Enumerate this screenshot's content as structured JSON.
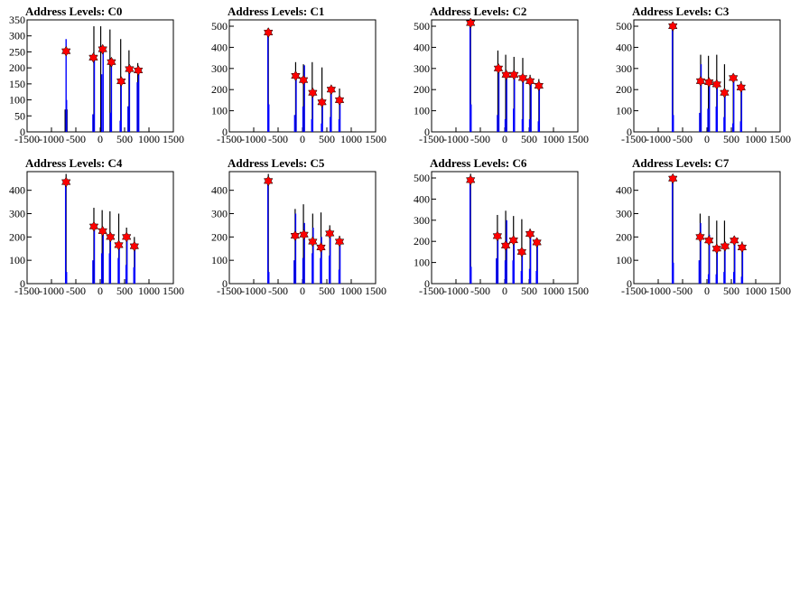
{
  "chart_data": [
    {
      "type": "bar",
      "title": "Address Levels: C0",
      "xlim": [
        -1500,
        1500
      ],
      "ylim": [
        0,
        350
      ],
      "xticks": [
        -1500,
        -1000,
        -500,
        0,
        500,
        1000,
        1500
      ],
      "yticks": [
        0,
        50,
        100,
        150,
        200,
        250,
        300,
        350
      ],
      "black_bars": [
        {
          "x": -720,
          "y": 70
        },
        {
          "x": -680,
          "y": 70
        },
        {
          "x": -130,
          "y": 330
        },
        {
          "x": 10,
          "y": 330
        },
        {
          "x": 200,
          "y": 320
        },
        {
          "x": 420,
          "y": 290
        },
        {
          "x": 590,
          "y": 255
        },
        {
          "x": 770,
          "y": 215
        }
      ],
      "blue_bars": [
        {
          "x": -700,
          "y": 290
        },
        {
          "x": -690,
          "y": 100
        },
        {
          "x": -150,
          "y": 55
        },
        {
          "x": -120,
          "y": 235
        },
        {
          "x": 30,
          "y": 180
        },
        {
          "x": 60,
          "y": 255
        },
        {
          "x": 210,
          "y": 60
        },
        {
          "x": 230,
          "y": 215
        },
        {
          "x": 410,
          "y": 35
        },
        {
          "x": 430,
          "y": 160
        },
        {
          "x": 570,
          "y": 80
        },
        {
          "x": 600,
          "y": 195
        },
        {
          "x": 760,
          "y": 155
        },
        {
          "x": 790,
          "y": 190
        }
      ],
      "peaks": [
        {
          "x": -700,
          "y": 252
        },
        {
          "x": -140,
          "y": 232
        },
        {
          "x": 50,
          "y": 258
        },
        {
          "x": 230,
          "y": 218
        },
        {
          "x": 430,
          "y": 158
        },
        {
          "x": 600,
          "y": 196
        },
        {
          "x": 780,
          "y": 192
        }
      ]
    },
    {
      "type": "bar",
      "title": "Address Levels: C1",
      "xlim": [
        -1500,
        1500
      ],
      "ylim": [
        0,
        530
      ],
      "xticks": [
        -1500,
        -1000,
        -500,
        0,
        500,
        1000,
        1500
      ],
      "yticks": [
        0,
        100,
        200,
        300,
        400,
        500
      ],
      "black_bars": [
        {
          "x": -700,
          "y": 490
        },
        {
          "x": -140,
          "y": 330
        },
        {
          "x": 20,
          "y": 320
        },
        {
          "x": 200,
          "y": 330
        },
        {
          "x": 400,
          "y": 305
        },
        {
          "x": 580,
          "y": 215
        },
        {
          "x": 760,
          "y": 205
        }
      ],
      "blue_bars": [
        {
          "x": -710,
          "y": 470
        },
        {
          "x": -690,
          "y": 130
        },
        {
          "x": -160,
          "y": 80
        },
        {
          "x": -130,
          "y": 260
        },
        {
          "x": 10,
          "y": 120
        },
        {
          "x": 40,
          "y": 315
        },
        {
          "x": 190,
          "y": 60
        },
        {
          "x": 210,
          "y": 180
        },
        {
          "x": 390,
          "y": 40
        },
        {
          "x": 410,
          "y": 140
        },
        {
          "x": 570,
          "y": 70
        },
        {
          "x": 590,
          "y": 200
        },
        {
          "x": 750,
          "y": 60
        },
        {
          "x": 770,
          "y": 150
        }
      ],
      "peaks": [
        {
          "x": -700,
          "y": 470
        },
        {
          "x": -140,
          "y": 265
        },
        {
          "x": 20,
          "y": 245
        },
        {
          "x": 210,
          "y": 185
        },
        {
          "x": 400,
          "y": 140
        },
        {
          "x": 590,
          "y": 200
        },
        {
          "x": 760,
          "y": 150
        }
      ]
    },
    {
      "type": "bar",
      "title": "Address Levels: C2",
      "xlim": [
        -1500,
        1500
      ],
      "ylim": [
        0,
        530
      ],
      "xticks": [
        -1500,
        -1000,
        -500,
        0,
        500,
        1000,
        1500
      ],
      "yticks": [
        0,
        100,
        200,
        300,
        400,
        500
      ],
      "black_bars": [
        {
          "x": -700,
          "y": 520
        },
        {
          "x": -140,
          "y": 385
        },
        {
          "x": 20,
          "y": 365
        },
        {
          "x": 190,
          "y": 355
        },
        {
          "x": 370,
          "y": 350
        },
        {
          "x": 520,
          "y": 270
        },
        {
          "x": 700,
          "y": 250
        }
      ],
      "blue_bars": [
        {
          "x": -710,
          "y": 500
        },
        {
          "x": -690,
          "y": 130
        },
        {
          "x": -150,
          "y": 80
        },
        {
          "x": -120,
          "y": 300
        },
        {
          "x": 10,
          "y": 60
        },
        {
          "x": 40,
          "y": 270
        },
        {
          "x": 180,
          "y": 110
        },
        {
          "x": 200,
          "y": 275
        },
        {
          "x": 360,
          "y": 60
        },
        {
          "x": 380,
          "y": 250
        },
        {
          "x": 510,
          "y": 60
        },
        {
          "x": 540,
          "y": 240
        },
        {
          "x": 690,
          "y": 50
        },
        {
          "x": 710,
          "y": 215
        }
      ],
      "peaks": [
        {
          "x": -700,
          "y": 515
        },
        {
          "x": -130,
          "y": 300
        },
        {
          "x": 30,
          "y": 270
        },
        {
          "x": 190,
          "y": 270
        },
        {
          "x": 370,
          "y": 255
        },
        {
          "x": 520,
          "y": 240
        },
        {
          "x": 700,
          "y": 218
        }
      ]
    },
    {
      "type": "bar",
      "title": "Address Levels: C3",
      "xlim": [
        -1500,
        1500
      ],
      "ylim": [
        0,
        530
      ],
      "xticks": [
        -1500,
        -1000,
        -500,
        0,
        500,
        1000,
        1500
      ],
      "yticks": [
        0,
        100,
        200,
        300,
        400,
        500
      ],
      "black_bars": [
        {
          "x": -700,
          "y": 520
        },
        {
          "x": -130,
          "y": 365
        },
        {
          "x": 30,
          "y": 360
        },
        {
          "x": 200,
          "y": 365
        },
        {
          "x": 360,
          "y": 320
        },
        {
          "x": 540,
          "y": 250
        },
        {
          "x": 700,
          "y": 240
        }
      ],
      "blue_bars": [
        {
          "x": -710,
          "y": 500
        },
        {
          "x": -690,
          "y": 80
        },
        {
          "x": -150,
          "y": 90
        },
        {
          "x": -120,
          "y": 320
        },
        {
          "x": 20,
          "y": 110
        },
        {
          "x": 50,
          "y": 230
        },
        {
          "x": 190,
          "y": 120
        },
        {
          "x": 210,
          "y": 220
        },
        {
          "x": 350,
          "y": 70
        },
        {
          "x": 370,
          "y": 180
        },
        {
          "x": 530,
          "y": 40
        },
        {
          "x": 550,
          "y": 250
        },
        {
          "x": 690,
          "y": 50
        },
        {
          "x": 710,
          "y": 210
        }
      ],
      "peaks": [
        {
          "x": -700,
          "y": 500
        },
        {
          "x": -130,
          "y": 240
        },
        {
          "x": 40,
          "y": 235
        },
        {
          "x": 200,
          "y": 225
        },
        {
          "x": 360,
          "y": 185
        },
        {
          "x": 540,
          "y": 255
        },
        {
          "x": 700,
          "y": 210
        }
      ]
    },
    {
      "type": "bar",
      "title": "Address Levels: C4",
      "xlim": [
        -1500,
        1500
      ],
      "ylim": [
        0,
        480
      ],
      "xticks": [
        -1500,
        -1000,
        -500,
        0,
        500,
        1000,
        1500
      ],
      "yticks": [
        0,
        100,
        200,
        300,
        400
      ],
      "black_bars": [
        {
          "x": -700,
          "y": 470
        },
        {
          "x": -130,
          "y": 325
        },
        {
          "x": 40,
          "y": 315
        },
        {
          "x": 200,
          "y": 310
        },
        {
          "x": 380,
          "y": 300
        },
        {
          "x": 540,
          "y": 240
        },
        {
          "x": 700,
          "y": 200
        }
      ],
      "blue_bars": [
        {
          "x": -710,
          "y": 450
        },
        {
          "x": -690,
          "y": 50
        },
        {
          "x": -150,
          "y": 100
        },
        {
          "x": -120,
          "y": 250
        },
        {
          "x": 30,
          "y": 130
        },
        {
          "x": 60,
          "y": 220
        },
        {
          "x": 190,
          "y": 130
        },
        {
          "x": 210,
          "y": 190
        },
        {
          "x": 370,
          "y": 110
        },
        {
          "x": 390,
          "y": 160
        },
        {
          "x": 530,
          "y": 80
        },
        {
          "x": 550,
          "y": 200
        },
        {
          "x": 690,
          "y": 70
        },
        {
          "x": 710,
          "y": 165
        }
      ],
      "peaks": [
        {
          "x": -700,
          "y": 435
        },
        {
          "x": -130,
          "y": 245
        },
        {
          "x": 50,
          "y": 225
        },
        {
          "x": 210,
          "y": 200
        },
        {
          "x": 380,
          "y": 165
        },
        {
          "x": 540,
          "y": 200
        },
        {
          "x": 700,
          "y": 160
        }
      ]
    },
    {
      "type": "bar",
      "title": "Address Levels: C5",
      "xlim": [
        -1500,
        1500
      ],
      "ylim": [
        0,
        480
      ],
      "xticks": [
        -1500,
        -1000,
        -500,
        0,
        500,
        1000,
        1500
      ],
      "yticks": [
        0,
        100,
        200,
        300,
        400
      ],
      "black_bars": [
        {
          "x": -700,
          "y": 470
        },
        {
          "x": -150,
          "y": 320
        },
        {
          "x": 20,
          "y": 340
        },
        {
          "x": 210,
          "y": 300
        },
        {
          "x": 380,
          "y": 305
        },
        {
          "x": 560,
          "y": 250
        },
        {
          "x": 760,
          "y": 205
        }
      ],
      "blue_bars": [
        {
          "x": -710,
          "y": 450
        },
        {
          "x": -690,
          "y": 50
        },
        {
          "x": -170,
          "y": 100
        },
        {
          "x": -140,
          "y": 300
        },
        {
          "x": 10,
          "y": 110
        },
        {
          "x": 40,
          "y": 260
        },
        {
          "x": 200,
          "y": 130
        },
        {
          "x": 220,
          "y": 240
        },
        {
          "x": 370,
          "y": 110
        },
        {
          "x": 390,
          "y": 200
        },
        {
          "x": 550,
          "y": 120
        },
        {
          "x": 570,
          "y": 220
        },
        {
          "x": 750,
          "y": 60
        },
        {
          "x": 770,
          "y": 180
        }
      ],
      "peaks": [
        {
          "x": -700,
          "y": 440
        },
        {
          "x": -150,
          "y": 205
        },
        {
          "x": 30,
          "y": 210
        },
        {
          "x": 210,
          "y": 180
        },
        {
          "x": 380,
          "y": 155
        },
        {
          "x": 560,
          "y": 215
        },
        {
          "x": 760,
          "y": 180
        }
      ]
    },
    {
      "type": "bar",
      "title": "Address Levels: C6",
      "xlim": [
        -1500,
        1500
      ],
      "ylim": [
        0,
        530
      ],
      "xticks": [
        -1500,
        -1000,
        -500,
        0,
        500,
        1000,
        1500
      ],
      "yticks": [
        0,
        100,
        200,
        300,
        400,
        500
      ],
      "black_bars": [
        {
          "x": -700,
          "y": 520
        },
        {
          "x": -150,
          "y": 325
        },
        {
          "x": 20,
          "y": 345
        },
        {
          "x": 180,
          "y": 320
        },
        {
          "x": 350,
          "y": 305
        },
        {
          "x": 520,
          "y": 260
        },
        {
          "x": 660,
          "y": 200
        }
      ],
      "blue_bars": [
        {
          "x": -710,
          "y": 500
        },
        {
          "x": -690,
          "y": 80
        },
        {
          "x": -170,
          "y": 120
        },
        {
          "x": -140,
          "y": 240
        },
        {
          "x": 10,
          "y": 110
        },
        {
          "x": 40,
          "y": 300
        },
        {
          "x": 170,
          "y": 110
        },
        {
          "x": 190,
          "y": 210
        },
        {
          "x": 340,
          "y": 60
        },
        {
          "x": 360,
          "y": 150
        },
        {
          "x": 510,
          "y": 70
        },
        {
          "x": 530,
          "y": 240
        },
        {
          "x": 650,
          "y": 60
        },
        {
          "x": 670,
          "y": 200
        }
      ],
      "peaks": [
        {
          "x": -700,
          "y": 490
        },
        {
          "x": -150,
          "y": 225
        },
        {
          "x": 20,
          "y": 180
        },
        {
          "x": 180,
          "y": 205
        },
        {
          "x": 350,
          "y": 150
        },
        {
          "x": 520,
          "y": 235
        },
        {
          "x": 660,
          "y": 195
        }
      ]
    },
    {
      "type": "bar",
      "title": "Address Levels: C7",
      "xlim": [
        -1500,
        1500
      ],
      "ylim": [
        0,
        480
      ],
      "xticks": [
        -1500,
        -1000,
        -500,
        0,
        500,
        1000,
        1500
      ],
      "yticks": [
        0,
        100,
        200,
        300,
        400
      ],
      "black_bars": [
        {
          "x": -700,
          "y": 470
        },
        {
          "x": -140,
          "y": 300
        },
        {
          "x": 40,
          "y": 290
        },
        {
          "x": 200,
          "y": 270
        },
        {
          "x": 360,
          "y": 270
        },
        {
          "x": 560,
          "y": 200
        },
        {
          "x": 720,
          "y": 180
        }
      ],
      "blue_bars": [
        {
          "x": -710,
          "y": 450
        },
        {
          "x": -690,
          "y": 90
        },
        {
          "x": -160,
          "y": 100
        },
        {
          "x": -130,
          "y": 260
        },
        {
          "x": 30,
          "y": 40
        },
        {
          "x": 50,
          "y": 210
        },
        {
          "x": 190,
          "y": 40
        },
        {
          "x": 210,
          "y": 150
        },
        {
          "x": 350,
          "y": 50
        },
        {
          "x": 370,
          "y": 160
        },
        {
          "x": 550,
          "y": 50
        },
        {
          "x": 570,
          "y": 190
        },
        {
          "x": 710,
          "y": 30
        },
        {
          "x": 730,
          "y": 160
        }
      ],
      "peaks": [
        {
          "x": -700,
          "y": 450
        },
        {
          "x": -140,
          "y": 200
        },
        {
          "x": 40,
          "y": 185
        },
        {
          "x": 200,
          "y": 150
        },
        {
          "x": 370,
          "y": 160
        },
        {
          "x": 560,
          "y": 185
        },
        {
          "x": 720,
          "y": 155
        }
      ]
    }
  ]
}
